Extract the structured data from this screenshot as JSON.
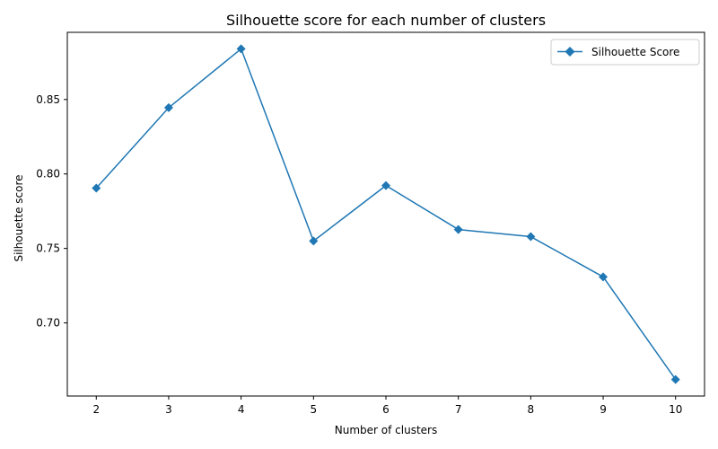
{
  "chart_data": {
    "type": "line",
    "title": "Silhouette score for each number of clusters",
    "xlabel": "Number of clusters",
    "ylabel": "Silhouette score",
    "x": [
      2,
      3,
      4,
      5,
      6,
      7,
      8,
      9,
      10
    ],
    "series": [
      {
        "name": "Silhouette Score",
        "values": [
          0.7905,
          0.8445,
          0.884,
          0.755,
          0.7922,
          0.7627,
          0.7579,
          0.7309,
          0.662
        ],
        "color": "#1f77b4",
        "marker": "diamond"
      }
    ],
    "xticks": [
      "2",
      "3",
      "4",
      "5",
      "6",
      "7",
      "8",
      "9",
      "10"
    ],
    "yticks": [
      "0.70",
      "0.75",
      "0.80",
      "0.85"
    ],
    "ytick_values": [
      0.7,
      0.75,
      0.8,
      0.85
    ],
    "xlim": [
      1.6,
      10.4
    ],
    "ylim": [
      0.6509,
      0.8951
    ],
    "grid": false,
    "legend_position": "top-right"
  }
}
